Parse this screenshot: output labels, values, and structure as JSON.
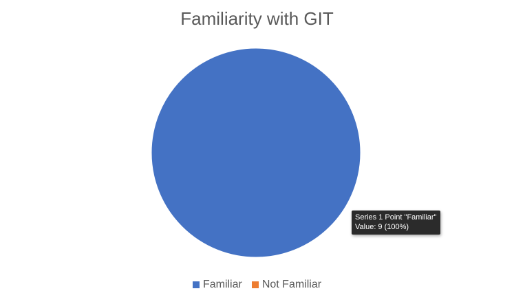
{
  "chart_data": {
    "type": "pie",
    "title": "Familiarity with GIT",
    "categories": [
      "Familiar",
      "Not Familiar"
    ],
    "series": [
      {
        "name": "Series 1",
        "values": [
          9,
          0
        ]
      }
    ],
    "colors": [
      "#4472C4",
      "#ED7D31"
    ],
    "legend": "bottom",
    "legend_entries": [
      "Familiar",
      "Not Familiar"
    ]
  },
  "tooltip": {
    "line1": "Series 1 Point \"Familiar\"",
    "line2": "Value: 9 (100%)"
  }
}
